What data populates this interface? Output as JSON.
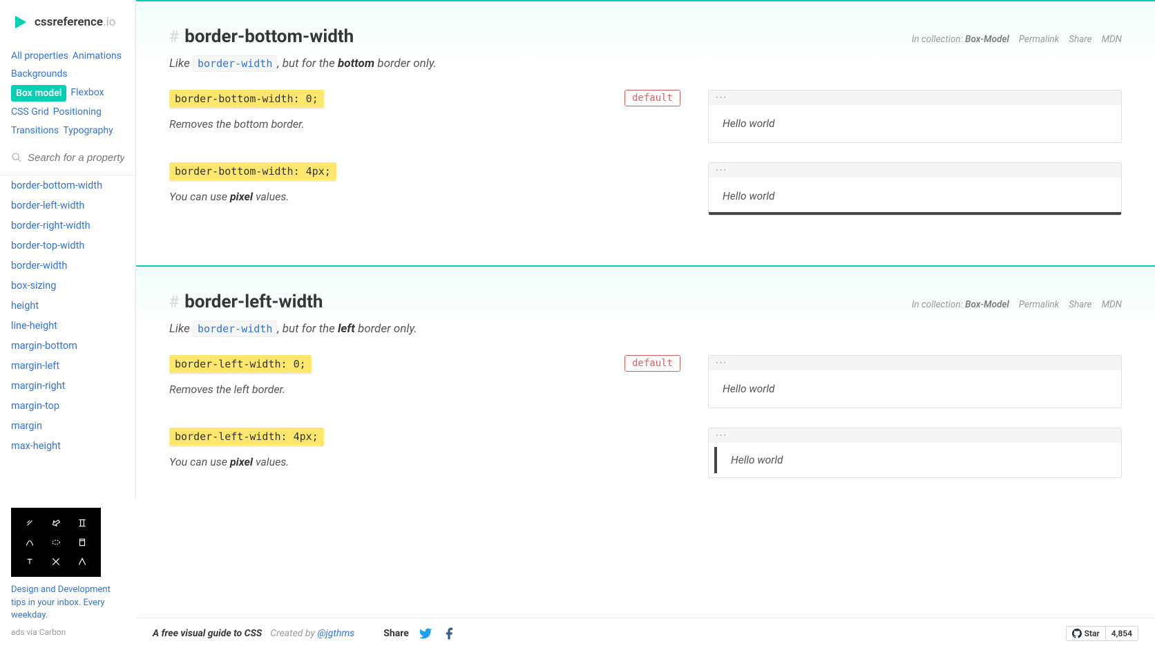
{
  "logo": {
    "text": "cssreference",
    "suffix": ".io"
  },
  "nav": {
    "tags": [
      {
        "label": "All properties",
        "active": false
      },
      {
        "label": "Animations",
        "active": false
      },
      {
        "label": "Backgrounds",
        "active": false
      },
      {
        "label": "Box model",
        "active": true
      },
      {
        "label": "Flexbox",
        "active": false
      },
      {
        "label": "CSS Grid",
        "active": false
      },
      {
        "label": "Positioning",
        "active": false
      },
      {
        "label": "Transitions",
        "active": false
      },
      {
        "label": "Typography",
        "active": false
      }
    ]
  },
  "search": {
    "placeholder": "Search for a property"
  },
  "properties": [
    "border-bottom-width",
    "border-left-width",
    "border-right-width",
    "border-top-width",
    "border-width",
    "box-sizing",
    "height",
    "line-height",
    "margin-bottom",
    "margin-left",
    "margin-right",
    "margin-top",
    "margin",
    "max-height"
  ],
  "ad": {
    "text": "Design and Development tips in your inbox. Every weekday.",
    "via": "ads via Carbon"
  },
  "sections": [
    {
      "title": "border-bottom-width",
      "desc_prefix": "Like ",
      "desc_code": "border-width",
      "desc_mid": ", but for the ",
      "desc_bold": "bottom",
      "desc_suffix": " border only.",
      "collection": "Box-Model",
      "links": [
        "Permalink",
        "Share",
        "MDN"
      ],
      "examples": [
        {
          "code": "border-bottom-width: 0;",
          "default": true,
          "default_label": "default",
          "desc": "Removes the bottom border.",
          "preview_text": "Hello world",
          "preview_class": ""
        },
        {
          "code": "border-bottom-width: 4px;",
          "default": false,
          "desc_prefix": "You can use ",
          "desc_bold": "pixel",
          "desc_suffix": " values.",
          "preview_text": "Hello world",
          "preview_class": "border-b-4"
        }
      ]
    },
    {
      "title": "border-left-width",
      "desc_prefix": "Like ",
      "desc_code": "border-width",
      "desc_mid": ", but for the ",
      "desc_bold": "left",
      "desc_suffix": " border only.",
      "collection": "Box-Model",
      "links": [
        "Permalink",
        "Share",
        "MDN"
      ],
      "examples": [
        {
          "code": "border-left-width: 0;",
          "default": true,
          "default_label": "default",
          "desc": "Removes the left border.",
          "preview_text": "Hello world",
          "preview_class": ""
        },
        {
          "code": "border-left-width: 4px;",
          "default": false,
          "desc_prefix": "You can use ",
          "desc_bold": "pixel",
          "desc_suffix": " values.",
          "preview_text": "Hello world",
          "preview_class": "border-l-4"
        }
      ]
    }
  ],
  "footer": {
    "tagline": "A free visual guide to CSS",
    "created": "Created by ",
    "author": "@jgthms",
    "share": "Share",
    "star": "Star",
    "stars": "4,854"
  },
  "colors": {
    "primary": "#00d1b2",
    "link": "#3273dc",
    "chip_bg": "#ffe66d",
    "default_border": "#e05a5a"
  }
}
